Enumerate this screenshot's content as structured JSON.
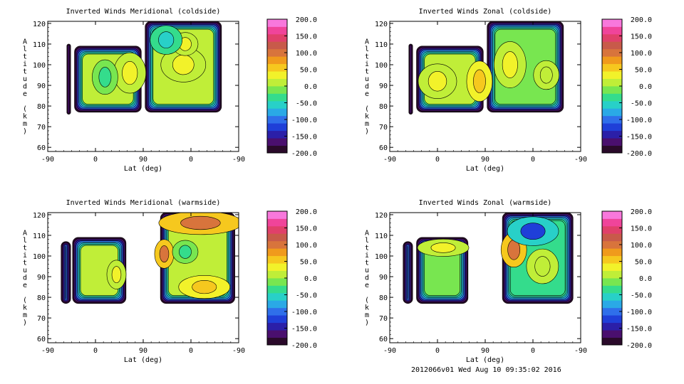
{
  "footer": "2012066v01 Wed Aug 10 09:35:02 2016",
  "colorbar": {
    "ticks": [
      "200.0",
      "150.0",
      "100.0",
      "50.0",
      "0.0",
      "-50.0",
      "-100.0",
      "-150.0",
      "-200.0"
    ],
    "range": [
      -200,
      200
    ],
    "colors": [
      "#2a0a2a",
      "#4a0f6e",
      "#2b1fa8",
      "#1f3fd8",
      "#2f6fea",
      "#2aa9e6",
      "#28d0c8",
      "#34dc8c",
      "#78e650",
      "#c0ee38",
      "#f2f22a",
      "#f6c81e",
      "#f09a1c",
      "#d8743c",
      "#c85a4a",
      "#e0406a",
      "#f0449a",
      "#f878dc"
    ]
  },
  "chart_data": [
    {
      "type": "heatmap",
      "title": "Inverted Winds Meridional (coldside)",
      "xlabel": "Lat (deg)",
      "ylabel": "Altitude (km)",
      "xticks": [
        "-90",
        "0",
        "90",
        "0",
        "-90"
      ],
      "yticks": [
        "60",
        "70",
        "80",
        "90",
        "100",
        "110",
        "120"
      ],
      "ylim": [
        58,
        121
      ],
      "regions": [
        {
          "x0": 0.1,
          "x1": 0.12,
          "y0": 76,
          "y1": 110,
          "value": -190
        },
        {
          "x0": 0.14,
          "x1": 0.49,
          "y0": 77,
          "y1": 109,
          "value": 10
        },
        {
          "x0": 0.51,
          "x1": 0.91,
          "y0": 77,
          "y1": 121,
          "value": 20
        }
      ],
      "blobs": [
        {
          "x": 0.43,
          "y": 96,
          "rx": 0.05,
          "ry": 7,
          "value": 30
        },
        {
          "x": 0.3,
          "y": 94,
          "rx": 0.04,
          "ry": 6,
          "value": -35
        },
        {
          "x": 0.71,
          "y": 100,
          "rx": 0.07,
          "ry": 6,
          "value": 35
        },
        {
          "x": 0.72,
          "y": 110,
          "rx": 0.04,
          "ry": 4,
          "value": 40
        },
        {
          "x": 0.62,
          "y": 112,
          "rx": 0.05,
          "ry": 5,
          "value": -55
        }
      ]
    },
    {
      "type": "heatmap",
      "title": "Inverted Winds Zonal (coldside)",
      "xlabel": "Lat (deg)",
      "ylabel": "Altitude (km)",
      "xticks": [
        "-90",
        "0",
        "90",
        "0",
        "-90"
      ],
      "yticks": [
        "60",
        "70",
        "80",
        "90",
        "100",
        "110",
        "120"
      ],
      "ylim": [
        58,
        121
      ],
      "regions": [
        {
          "x0": 0.1,
          "x1": 0.12,
          "y0": 76,
          "y1": 110,
          "value": -190
        },
        {
          "x0": 0.14,
          "x1": 0.49,
          "y0": 77,
          "y1": 109,
          "value": 5
        },
        {
          "x0": 0.51,
          "x1": 0.91,
          "y0": 77,
          "y1": 121,
          "value": -10
        }
      ],
      "blobs": [
        {
          "x": 0.25,
          "y": 92,
          "rx": 0.06,
          "ry": 6,
          "value": 40
        },
        {
          "x": 0.47,
          "y": 92,
          "rx": 0.04,
          "ry": 7,
          "value": 60
        },
        {
          "x": 0.63,
          "y": 100,
          "rx": 0.05,
          "ry": 8,
          "value": 35
        },
        {
          "x": 0.82,
          "y": 95,
          "rx": 0.04,
          "ry": 5,
          "value": 20
        }
      ]
    },
    {
      "type": "heatmap",
      "title": "Inverted Winds Meridional (warmside)",
      "xlabel": "Lat (deg)",
      "ylabel": "Altitude (km)",
      "xticks": [
        "-90",
        "0",
        "90",
        "0",
        "-90"
      ],
      "yticks": [
        "60",
        "70",
        "80",
        "90",
        "100",
        "110",
        "120"
      ],
      "ylim": [
        58,
        121
      ],
      "regions": [
        {
          "x0": 0.07,
          "x1": 0.12,
          "y0": 77,
          "y1": 107,
          "value": -180
        },
        {
          "x0": 0.13,
          "x1": 0.41,
          "y0": 77,
          "y1": 109,
          "value": 0
        },
        {
          "x0": 0.59,
          "x1": 0.98,
          "y0": 77,
          "y1": 121,
          "value": 20
        }
      ],
      "blobs": [
        {
          "x": 0.8,
          "y": 116,
          "rx": 0.13,
          "ry": 4,
          "value": 90
        },
        {
          "x": 0.61,
          "y": 101,
          "rx": 0.03,
          "ry": 5,
          "value": 90
        },
        {
          "x": 0.82,
          "y": 85,
          "rx": 0.08,
          "ry": 4,
          "value": 60
        },
        {
          "x": 0.36,
          "y": 91,
          "rx": 0.03,
          "ry": 5,
          "value": 40
        },
        {
          "x": 0.72,
          "y": 102,
          "rx": 0.04,
          "ry": 4,
          "value": -40
        }
      ]
    },
    {
      "type": "heatmap",
      "title": "Inverted Winds Zonal (warmside)",
      "xlabel": "Lat (deg)",
      "ylabel": "Altitude (km)",
      "xticks": [
        "-90",
        "0",
        "90",
        "0",
        "-90"
      ],
      "yticks": [
        "60",
        "70",
        "80",
        "90",
        "100",
        "110",
        "120"
      ],
      "ylim": [
        58,
        121
      ],
      "regions": [
        {
          "x0": 0.07,
          "x1": 0.12,
          "y0": 77,
          "y1": 107,
          "value": -100
        },
        {
          "x0": 0.14,
          "x1": 0.41,
          "y0": 77,
          "y1": 109,
          "value": -20
        },
        {
          "x0": 0.59,
          "x1": 0.96,
          "y0": 77,
          "y1": 121,
          "value": -30
        }
      ],
      "blobs": [
        {
          "x": 0.65,
          "y": 103,
          "rx": 0.04,
          "ry": 6,
          "value": 90
        },
        {
          "x": 0.75,
          "y": 112,
          "rx": 0.08,
          "ry": 5,
          "value": -120
        },
        {
          "x": 0.28,
          "y": 104,
          "rx": 0.08,
          "ry": 3,
          "value": 30
        },
        {
          "x": 0.8,
          "y": 95,
          "rx": 0.05,
          "ry": 6,
          "value": 10
        }
      ]
    }
  ]
}
